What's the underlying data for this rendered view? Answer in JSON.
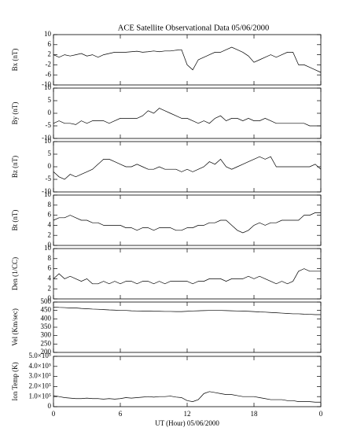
{
  "chart_data": [
    {
      "type": "line",
      "title": "ACE Satellite Observational Data   05/06/2000",
      "ylabel": "Bx (nT)",
      "color": "#000000",
      "x": [
        0,
        0.5,
        1,
        1.5,
        2,
        2.5,
        3,
        3.5,
        4,
        4.5,
        5,
        5.5,
        6,
        6.5,
        7,
        7.5,
        8,
        8.5,
        9,
        9.5,
        10,
        10.5,
        11,
        11.5,
        12,
        12.5,
        13,
        13.5,
        14,
        14.5,
        15,
        15.5,
        16,
        16.5,
        17,
        17.5,
        18,
        18.5,
        19,
        19.5,
        20,
        20.5,
        21,
        21.5,
        22,
        22.5,
        23,
        23.5,
        24
      ],
      "values": [
        2,
        1,
        2,
        1.5,
        2,
        2.5,
        1.5,
        2,
        1,
        2,
        2.5,
        3,
        3,
        3,
        3.2,
        3.4,
        3,
        3.2,
        3.5,
        3.2,
        3.5,
        3.5,
        3.8,
        4,
        -2,
        -4,
        0,
        1,
        2,
        3,
        3,
        4,
        5,
        4,
        3,
        1.5,
        -1,
        0,
        1,
        2,
        1,
        2,
        3,
        3,
        -2,
        -2,
        -3,
        -4,
        -5
      ],
      "xlim": [
        0,
        24
      ],
      "xticks": [
        0,
        6,
        12,
        18,
        {
          "value": 24,
          "label": "0"
        }
      ],
      "ylim": [
        -10,
        10
      ],
      "yticks": [
        -10,
        -6,
        -2,
        2,
        6,
        10
      ]
    },
    {
      "type": "line",
      "ylabel": "By (nT)",
      "color": "#000000",
      "x": [
        0,
        0.5,
        1,
        1.5,
        2,
        2.5,
        3,
        3.5,
        4,
        4.5,
        5,
        5.5,
        6,
        6.5,
        7,
        7.5,
        8,
        8.5,
        9,
        9.5,
        10,
        10.5,
        11,
        11.5,
        12,
        12.5,
        13,
        13.5,
        14,
        14.5,
        15,
        15.5,
        16,
        16.5,
        17,
        17.5,
        18,
        18.5,
        19,
        19.5,
        20,
        20.5,
        21,
        21.5,
        22,
        22.5,
        23,
        23.5,
        24
      ],
      "values": [
        -4,
        -3,
        -4,
        -4,
        -4.5,
        -3,
        -4,
        -3,
        -3,
        -3,
        -4,
        -3,
        -2,
        -2,
        -2,
        -2,
        -1,
        1,
        0,
        2,
        1,
        0,
        -1,
        -2,
        -2,
        -3,
        -4,
        -3,
        -4,
        -2,
        -1,
        -3,
        -2,
        -2,
        -3,
        -2,
        -3,
        -3,
        -2,
        -3,
        -4,
        -4,
        -4,
        -4,
        -4,
        -4,
        -5,
        -5,
        -5
      ],
      "xlim": [
        0,
        24
      ],
      "xticks": [
        0,
        6,
        12,
        18,
        {
          "value": 24,
          "label": "0"
        }
      ],
      "ylim": [
        -10,
        10
      ],
      "yticks": [
        -10,
        -5,
        0,
        5,
        10
      ]
    },
    {
      "type": "line",
      "ylabel": "Bz (nT)",
      "color": "#000000",
      "x": [
        0,
        0.5,
        1,
        1.5,
        2,
        2.5,
        3,
        3.5,
        4,
        4.5,
        5,
        5.5,
        6,
        6.5,
        7,
        7.5,
        8,
        8.5,
        9,
        9.5,
        10,
        10.5,
        11,
        11.5,
        12,
        12.5,
        13,
        13.5,
        14,
        14.5,
        15,
        15.5,
        16,
        16.5,
        17,
        17.5,
        18,
        18.5,
        19,
        19.5,
        20,
        20.5,
        21,
        21.5,
        22,
        22.5,
        23,
        23.5,
        24
      ],
      "values": [
        -2,
        -4,
        -5,
        -3,
        -4,
        -3,
        -2,
        -1,
        1,
        3,
        3,
        2,
        1,
        0,
        0,
        1,
        0,
        -1,
        -1,
        0,
        -1,
        -1,
        -1,
        -2,
        -1,
        -2,
        -1,
        0,
        2,
        1,
        3,
        0,
        -1,
        0,
        1,
        2,
        3,
        4,
        3,
        4,
        0,
        0,
        0,
        0,
        0,
        0,
        0,
        1,
        -1
      ],
      "xlim": [
        0,
        24
      ],
      "xticks": [
        0,
        6,
        12,
        18,
        {
          "value": 24,
          "label": "0"
        }
      ],
      "ylim": [
        -10,
        10
      ],
      "yticks": [
        -10,
        -5,
        0,
        5,
        10
      ]
    },
    {
      "type": "line",
      "ylabel": "Bt (nT)",
      "color": "#000000",
      "x": [
        0,
        0.5,
        1,
        1.5,
        2,
        2.5,
        3,
        3.5,
        4,
        4.5,
        5,
        5.5,
        6,
        6.5,
        7,
        7.5,
        8,
        8.5,
        9,
        9.5,
        10,
        10.5,
        11,
        11.5,
        12,
        12.5,
        13,
        13.5,
        14,
        14.5,
        15,
        15.5,
        16,
        16.5,
        17,
        17.5,
        18,
        18.5,
        19,
        19.5,
        20,
        20.5,
        21,
        21.5,
        22,
        22.5,
        23,
        23.5,
        24
      ],
      "values": [
        5,
        5.5,
        5.5,
        6,
        5.5,
        5,
        5,
        4.5,
        4.5,
        4,
        4,
        4,
        4,
        3.5,
        3.5,
        3,
        3.5,
        3.5,
        3,
        3.5,
        3.5,
        3.5,
        3,
        3,
        3.5,
        3.5,
        4,
        4,
        4.5,
        4.5,
        5,
        5,
        4,
        3,
        2.5,
        3,
        4,
        4.5,
        4,
        4.5,
        4.5,
        5,
        5,
        5,
        5,
        6,
        6,
        6.5,
        6.5
      ],
      "xlim": [
        0,
        24
      ],
      "xticks": [
        0,
        6,
        12,
        18,
        {
          "value": 24,
          "label": "0"
        }
      ],
      "ylim": [
        0,
        10
      ],
      "yticks": [
        0,
        2,
        4,
        6,
        8,
        10
      ]
    },
    {
      "type": "line",
      "ylabel": "Den (1/CC)",
      "color": "#000000",
      "x": [
        0,
        0.5,
        1,
        1.5,
        2,
        2.5,
        3,
        3.5,
        4,
        4.5,
        5,
        5.5,
        6,
        6.5,
        7,
        7.5,
        8,
        8.5,
        9,
        9.5,
        10,
        10.5,
        11,
        11.5,
        12,
        12.5,
        13,
        13.5,
        14,
        14.5,
        15,
        15.5,
        16,
        16.5,
        17,
        17.5,
        18,
        18.5,
        19,
        19.5,
        20,
        20.5,
        21,
        21.5,
        22,
        22.5,
        23,
        23.5,
        24
      ],
      "values": [
        4,
        5,
        4,
        4.5,
        4,
        3.5,
        4,
        3,
        3,
        3.5,
        3,
        3.5,
        3,
        3.5,
        3.5,
        3,
        3.5,
        3.5,
        3,
        3.5,
        3,
        3.5,
        3.5,
        3.5,
        3.5,
        3,
        3.5,
        3.5,
        4,
        4,
        4,
        3.5,
        4,
        4,
        4,
        4.5,
        4,
        4.5,
        4,
        3.5,
        3,
        3.5,
        3,
        3.5,
        5.5,
        6,
        5.5,
        5.5,
        5.5
      ],
      "xlim": [
        0,
        24
      ],
      "xticks": [
        0,
        6,
        12,
        18,
        {
          "value": 24,
          "label": "0"
        }
      ],
      "ylim": [
        0,
        10
      ],
      "yticks": [
        0,
        2,
        4,
        6,
        8,
        10
      ]
    },
    {
      "type": "line",
      "ylabel": "Vel (Km/sec)",
      "color": "#000000",
      "x": [
        0,
        0.5,
        1,
        1.5,
        2,
        2.5,
        3,
        3.5,
        4,
        4.5,
        5,
        5.5,
        6,
        6.5,
        7,
        7.5,
        8,
        8.5,
        9,
        9.5,
        10,
        10.5,
        11,
        11.5,
        12,
        12.5,
        13,
        13.5,
        14,
        14.5,
        15,
        15.5,
        16,
        16.5,
        17,
        17.5,
        18,
        18.5,
        19,
        19.5,
        20,
        20.5,
        21,
        21.5,
        22,
        22.5,
        23,
        23.5,
        24
      ],
      "values": [
        470,
        468,
        467,
        465,
        465,
        462,
        460,
        458,
        457,
        455,
        453,
        452,
        450,
        450,
        448,
        447,
        446,
        446,
        445,
        445,
        444,
        444,
        443,
        443,
        445,
        447,
        448,
        449,
        450,
        450,
        450,
        449,
        448,
        447,
        446,
        445,
        443,
        441,
        440,
        438,
        436,
        434,
        432,
        430,
        430,
        428,
        427,
        425,
        425
      ],
      "xlim": [
        0,
        24
      ],
      "xticks": [
        0,
        6,
        12,
        18,
        {
          "value": 24,
          "label": "0"
        }
      ],
      "ylim": [
        200,
        500
      ],
      "yticks": [
        200,
        250,
        300,
        350,
        400,
        450,
        500
      ]
    },
    {
      "type": "line",
      "ylabel": "Ion Temp (K)",
      "xlabel": "UT (Hour)   05/06/2000",
      "color": "#000000",
      "x": [
        0,
        0.5,
        1,
        1.5,
        2,
        2.5,
        3,
        3.5,
        4,
        4.5,
        5,
        5.5,
        6,
        6.5,
        7,
        7.5,
        8,
        8.5,
        9,
        9.5,
        10,
        10.5,
        11,
        11.5,
        12,
        12.5,
        13,
        13.5,
        14,
        14.5,
        15,
        15.5,
        16,
        16.5,
        17,
        17.5,
        18,
        18.5,
        19,
        19.5,
        20,
        20.5,
        21,
        21.5,
        22,
        22.5,
        23,
        23.5,
        24
      ],
      "values": [
        110000,
        100000,
        90000,
        85000,
        80000,
        80000,
        85000,
        80000,
        80000,
        75000,
        80000,
        75000,
        80000,
        90000,
        85000,
        90000,
        95000,
        100000,
        95000,
        100000,
        100000,
        105000,
        95000,
        90000,
        60000,
        50000,
        70000,
        130000,
        150000,
        140000,
        130000,
        120000,
        120000,
        110000,
        100000,
        100000,
        100000,
        90000,
        80000,
        70000,
        70000,
        70000,
        60000,
        60000,
        50000,
        50000,
        50000,
        45000,
        45000
      ],
      "xlim": [
        0,
        24
      ],
      "xticks": [
        0,
        6,
        12,
        18,
        {
          "value": 24,
          "label": "0"
        }
      ],
      "ylim": [
        0,
        500000
      ],
      "yticks": [
        0,
        {
          "value": 100000,
          "label": "1.0×10⁵"
        },
        {
          "value": 200000,
          "label": "2.0×10⁵"
        },
        {
          "value": 300000,
          "label": "3.0×10⁵"
        },
        {
          "value": 400000,
          "label": "4.0×10⁵"
        },
        {
          "value": 500000,
          "label": "5.0×10⁵"
        }
      ]
    }
  ]
}
